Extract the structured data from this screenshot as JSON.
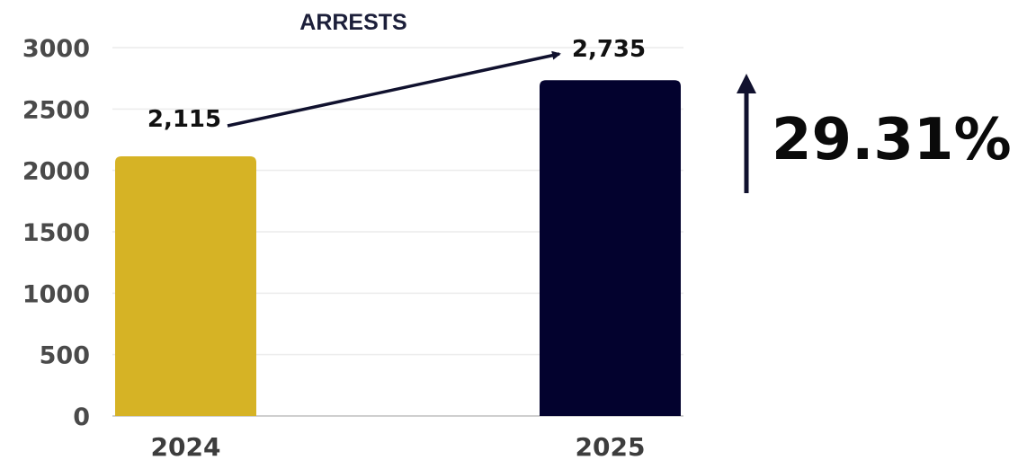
{
  "chart_data": {
    "type": "bar",
    "title": "ARRESTS",
    "categories": [
      "2024",
      "2025"
    ],
    "values": [
      2115,
      2735
    ],
    "data_labels": [
      "2,115",
      "2,735"
    ],
    "ylim": [
      0,
      3000
    ],
    "yticks": [
      0,
      500,
      1000,
      1500,
      2000,
      2500,
      3000
    ],
    "grid": true,
    "colors": [
      "#d6b325",
      "#03022e"
    ],
    "change": {
      "label": "29.31%",
      "direction": "up",
      "value": 29.31
    }
  }
}
